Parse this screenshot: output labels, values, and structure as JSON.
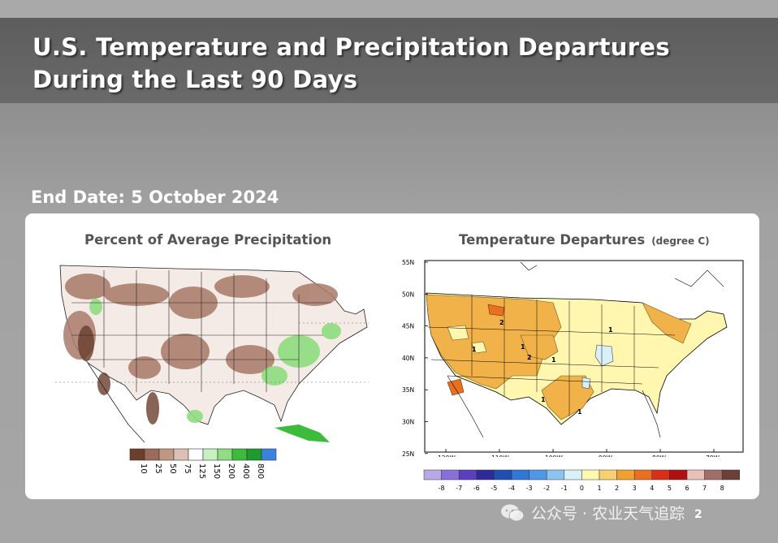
{
  "slide": {
    "title": "U.S. Temperature and Precipitation Departures During the Last 90 Days",
    "end_date": "End Date: 5 October 2024",
    "page_number": "2",
    "watermark": "公众号 · 农业天气追踪"
  },
  "precip_map": {
    "title": "Percent of Average Precipitation",
    "legend_labels": [
      "10",
      "25",
      "50",
      "75",
      "125",
      "150",
      "200",
      "400",
      "800"
    ],
    "legend_colors": [
      "#6b3e2e",
      "#9c6b5a",
      "#c09685",
      "#dcc0b3",
      "#ffffff",
      "#c8f0c0",
      "#8fdd80",
      "#3dbb3d",
      "#1e9b2e",
      "#3b82e0"
    ]
  },
  "temp_map": {
    "title": "Temperature Departures",
    "unit": "(degree C)",
    "lat_labels": [
      "55N",
      "50N",
      "45N",
      "40N",
      "35N",
      "30N",
      "25N"
    ],
    "lon_labels": [
      "120W",
      "110W",
      "100W",
      "90W",
      "80W",
      "70W"
    ],
    "contour_labels": [
      "2",
      "1",
      "2",
      "1",
      "1",
      "1",
      "1",
      "1"
    ],
    "legend_labels": [
      "-8",
      "-7",
      "-6",
      "-5",
      "-4",
      "-3",
      "-2",
      "-1",
      "0",
      "1",
      "2",
      "3",
      "4",
      "5",
      "6",
      "7",
      "8"
    ],
    "legend_colors": [
      "#b8a8e8",
      "#8a6fd8",
      "#5a3fc0",
      "#2e2a9a",
      "#1f4fb0",
      "#2f78d8",
      "#4f98e8",
      "#8cc4f0",
      "#d8f0f8",
      "#fff8b0",
      "#f8d070",
      "#f0a030",
      "#e87020",
      "#d83018",
      "#b01010",
      "#e8c0b8",
      "#a07068",
      "#6b4038"
    ]
  }
}
